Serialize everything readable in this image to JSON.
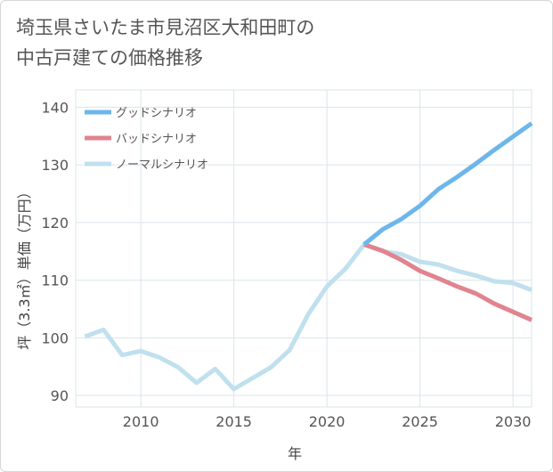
{
  "title_line1": "埼玉県さいたま市見沼区大和田町の",
  "title_line2": "中古戸建ての価格推移",
  "chart_data": {
    "type": "line",
    "title": "埼玉県さいたま市見沼区大和田町の中古戸建ての価格推移",
    "xlabel": "年",
    "ylabel": "坪（3.3㎡）単価（万円）",
    "xlim": [
      2006.5,
      2031
    ],
    "ylim": [
      88,
      143
    ],
    "xticks": [
      2010,
      2015,
      2020,
      2025,
      2030
    ],
    "yticks": [
      90,
      100,
      110,
      120,
      130,
      140
    ],
    "grid": true,
    "legend_position": "top-left",
    "series": [
      {
        "name": "グッドシナリオ",
        "color": "#6db6ec",
        "x": [
          2022,
          2023,
          2024,
          2025,
          2026,
          2027,
          2028,
          2029,
          2030,
          2031
        ],
        "y": [
          116.2,
          118.8,
          120.6,
          122.9,
          125.8,
          127.9,
          130.2,
          132.6,
          134.9,
          137.2
        ]
      },
      {
        "name": "バッドシナリオ",
        "color": "#e0848f",
        "x": [
          2022,
          2023,
          2024,
          2025,
          2026,
          2027,
          2028,
          2029,
          2030,
          2031
        ],
        "y": [
          116.2,
          115.1,
          113.5,
          111.6,
          110.3,
          108.9,
          107.7,
          105.9,
          104.5,
          103.1
        ]
      },
      {
        "name": "ノーマルシナリオ",
        "color": "#c0e0ee",
        "x": [
          2007,
          2008,
          2009,
          2010,
          2011,
          2012,
          2013,
          2014,
          2015,
          2016,
          2017,
          2018,
          2019,
          2020,
          2021,
          2022,
          2023,
          2024,
          2025,
          2026,
          2027,
          2028,
          2029,
          2030,
          2031
        ],
        "y": [
          100.2,
          101.4,
          97.0,
          97.7,
          96.6,
          94.9,
          92.2,
          94.6,
          91.1,
          93.0,
          94.9,
          97.9,
          104.1,
          108.9,
          112.0,
          116.2,
          115.0,
          114.5,
          113.2,
          112.7,
          111.6,
          110.8,
          109.8,
          109.5,
          108.3
        ]
      }
    ]
  }
}
